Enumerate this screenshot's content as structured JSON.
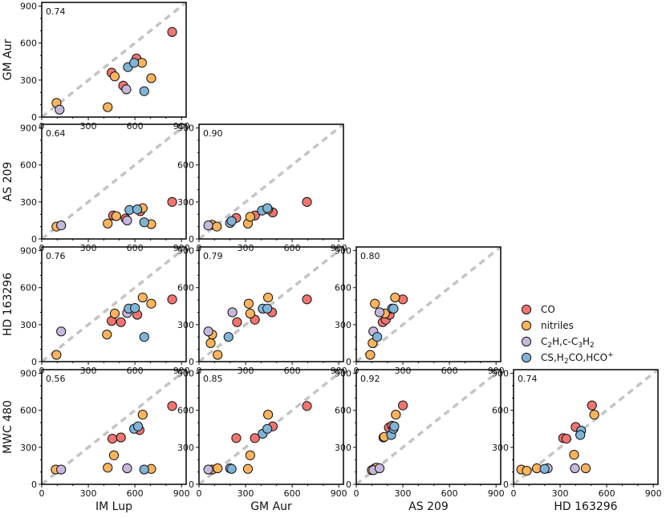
{
  "chart_data": {
    "type": "scatter",
    "layout": "corner",
    "title": "",
    "disks": [
      "IM Lup",
      "GM Aur",
      "AS 209",
      "HD 163296",
      "MWC 480"
    ],
    "x_axis_labels": [
      "IM Lup",
      "GM Aur",
      "AS 209",
      "HD 163296"
    ],
    "y_axis_labels": [
      "GM Aur",
      "AS 209",
      "HD 163296",
      "MWC 480"
    ],
    "xlim": [
      0,
      930
    ],
    "ylim": [
      0,
      930
    ],
    "ticks": [
      0,
      300,
      600,
      900
    ],
    "tick_labels": [
      "0",
      "300",
      "600",
      "900"
    ],
    "reference_line": "y = x",
    "grid": false,
    "legend_position": "right",
    "series": [
      {
        "name": "CO",
        "label_html": "CO",
        "color": "#f07470"
      },
      {
        "name": "nitriles",
        "label_html": "nitriles",
        "color": "#fbb45c"
      },
      {
        "name": "C2H,c-C3H2",
        "label_html": "C<tspan dy=\"3\" font-size=\"9\">2</tspan><tspan dy=\"-3\">H,c-C</tspan><tspan dy=\"3\" font-size=\"9\">3</tspan><tspan dy=\"-3\">H</tspan><tspan dy=\"3\" font-size=\"9\">2</tspan>",
        "color": "#c6b8dd"
      },
      {
        "name": "CS,H2CO,HCO+",
        "label_html": "CS,H<tspan dy=\"3\" font-size=\"9\">2</tspan><tspan dy=\"-3\">CO,HCO</tspan><tspan dy=\"-5\" font-size=\"9\">+</tspan>",
        "color": "#7fb4d8"
      }
    ],
    "panels": [
      {
        "id": "gmaur-vs-imlup",
        "row": 0,
        "col": 0,
        "x_disk": "IM Lup",
        "y_disk": "GM Aur",
        "corr": "0.74",
        "points": {
          "CO": [
            [
              450,
              360
            ],
            [
              525,
              255
            ],
            [
              610,
              475
            ],
            [
              840,
              690
            ]
          ],
          "nitriles": [
            [
              95,
              115
            ],
            [
              425,
              80
            ],
            [
              470,
              330
            ],
            [
              645,
              440
            ],
            [
              705,
              315
            ]
          ],
          "C2H,c-C3H2": [
            [
              115,
              60
            ],
            [
              545,
              225
            ]
          ],
          "CS,H2CO,HCO+": [
            [
              555,
              405
            ],
            [
              595,
              440
            ],
            [
              660,
              210
            ]
          ]
        }
      },
      {
        "id": "as209-vs-imlup",
        "row": 1,
        "col": 0,
        "x_disk": "IM Lup",
        "y_disk": "AS 209",
        "corr": "0.64",
        "points": {
          "CO": [
            [
              460,
              190
            ],
            [
              540,
              165
            ],
            [
              635,
              225
            ],
            [
              840,
              300
            ]
          ],
          "nitriles": [
            [
              95,
              100
            ],
            [
              425,
              125
            ],
            [
              480,
              185
            ],
            [
              650,
              250
            ],
            [
              705,
              120
            ]
          ],
          "C2H,c-C3H2": [
            [
              125,
              110
            ],
            [
              550,
              150
            ]
          ],
          "CS,H2CO,HCO+": [
            [
              565,
              235
            ],
            [
              615,
              240
            ],
            [
              660,
              135
            ]
          ]
        }
      },
      {
        "id": "as209-vs-gmaur",
        "row": 1,
        "col": 1,
        "x_disk": "GM Aur",
        "y_disk": "AS 209",
        "corr": "0.90",
        "points": {
          "CO": [
            [
              240,
              170
            ],
            [
              360,
              190
            ],
            [
              475,
              215
            ],
            [
              695,
              300
            ]
          ],
          "nitriles": [
            [
              85,
              115
            ],
            [
              115,
              100
            ],
            [
              315,
              125
            ],
            [
              330,
              180
            ],
            [
              445,
              240
            ]
          ],
          "C2H,c-C3H2": [
            [
              60,
              110
            ],
            [
              200,
              130
            ]
          ],
          "CS,H2CO,HCO+": [
            [
              405,
              230
            ],
            [
              440,
              250
            ],
            [
              210,
              145
            ]
          ]
        }
      },
      {
        "id": "hd163296-vs-imlup",
        "row": 2,
        "col": 0,
        "x_disk": "IM Lup",
        "y_disk": "HD 163296",
        "corr": "0.76",
        "points": {
          "CO": [
            [
              450,
              330
            ],
            [
              510,
              320
            ],
            [
              615,
              380
            ],
            [
              840,
              505
            ]
          ],
          "nitriles": [
            [
              95,
              55
            ],
            [
              420,
              220
            ],
            [
              470,
              390
            ],
            [
              650,
              520
            ],
            [
              705,
              470
            ]
          ],
          "C2H,c-C3H2": [
            [
              125,
              245
            ],
            [
              550,
              395
            ]
          ],
          "CS,H2CO,HCO+": [
            [
              560,
              430
            ],
            [
              600,
              435
            ],
            [
              660,
              200
            ]
          ]
        }
      },
      {
        "id": "hd163296-vs-gmaur",
        "row": 2,
        "col": 1,
        "x_disk": "GM Aur",
        "y_disk": "HD 163296",
        "corr": "0.79",
        "points": {
          "CO": [
            [
              245,
              320
            ],
            [
              360,
              340
            ],
            [
              470,
              400
            ],
            [
              695,
              505
            ]
          ],
          "nitriles": [
            [
              75,
              150
            ],
            [
              85,
              220
            ],
            [
              120,
              55
            ],
            [
              320,
              470
            ],
            [
              330,
              390
            ],
            [
              445,
              520
            ]
          ],
          "C2H,c-C3H2": [
            [
              60,
              245
            ],
            [
              215,
              400
            ]
          ],
          "CS,H2CO,HCO+": [
            [
              410,
              430
            ],
            [
              440,
              430
            ],
            [
              190,
              200
            ]
          ]
        }
      },
      {
        "id": "hd163296-vs-as209",
        "row": 2,
        "col": 2,
        "x_disk": "AS 209",
        "y_disk": "HD 163296",
        "corr": "0.80",
        "points": {
          "CO": [
            [
              170,
              320
            ],
            [
              190,
              340
            ],
            [
              215,
              380
            ],
            [
              300,
              505
            ]
          ],
          "nitriles": [
            [
              90,
              55
            ],
            [
              105,
              150
            ],
            [
              120,
              470
            ],
            [
              185,
              390
            ],
            [
              250,
              520
            ]
          ],
          "C2H,c-C3H2": [
            [
              110,
              245
            ],
            [
              150,
              400
            ]
          ],
          "CS,H2CO,HCO+": [
            [
              230,
              430
            ],
            [
              240,
              430
            ],
            [
              135,
              200
            ]
          ]
        }
      },
      {
        "id": "mwc480-vs-imlup",
        "row": 3,
        "col": 0,
        "x_disk": "IM Lup",
        "y_disk": "MWC 480",
        "corr": "0.56",
        "points": {
          "CO": [
            [
              455,
              370
            ],
            [
              510,
              380
            ],
            [
              630,
              440
            ],
            [
              840,
              635
            ]
          ],
          "nitriles": [
            [
              90,
              120
            ],
            [
              425,
              135
            ],
            [
              465,
              235
            ],
            [
              650,
              565
            ],
            [
              705,
              125
            ]
          ],
          "C2H,c-C3H2": [
            [
              125,
              120
            ],
            [
              550,
              130
            ]
          ],
          "CS,H2CO,HCO+": [
            [
              595,
              450
            ],
            [
              620,
              470
            ],
            [
              660,
              120
            ]
          ]
        }
      },
      {
        "id": "mwc480-vs-gmaur",
        "row": 3,
        "col": 1,
        "x_disk": "GM Aur",
        "y_disk": "MWC 480",
        "corr": "0.85",
        "points": {
          "CO": [
            [
              240,
              375
            ],
            [
              360,
              375
            ],
            [
              475,
              470
            ],
            [
              695,
              635
            ]
          ],
          "nitriles": [
            [
              85,
              120
            ],
            [
              120,
              130
            ],
            [
              315,
              125
            ],
            [
              330,
              235
            ],
            [
              445,
              565
            ]
          ],
          "C2H,c-C3H2": [
            [
              60,
              120
            ],
            [
              200,
              130
            ]
          ],
          "CS,H2CO,HCO+": [
            [
              410,
              410
            ],
            [
              440,
              450
            ],
            [
              210,
              125
            ]
          ]
        }
      },
      {
        "id": "mwc480-vs-as209",
        "row": 3,
        "col": 2,
        "x_disk": "AS 209",
        "y_disk": "MWC 480",
        "corr": "0.92",
        "points": {
          "CO": [
            [
              175,
              380
            ],
            [
              210,
              460
            ],
            [
              230,
              475
            ],
            [
              300,
              640
            ]
          ],
          "nitriles": [
            [
              100,
              115
            ],
            [
              120,
              130
            ],
            [
              130,
              135
            ],
            [
              180,
              385
            ],
            [
              255,
              565
            ]
          ],
          "C2H,c-C3H2": [
            [
              110,
              115
            ],
            [
              150,
              130
            ]
          ],
          "CS,H2CO,HCO+": [
            [
              225,
              400
            ],
            [
              240,
              450
            ],
            [
              245,
              470
            ]
          ]
        }
      },
      {
        "id": "mwc480-vs-hd163296",
        "row": 3,
        "col": 3,
        "x_disk": "HD 163296",
        "y_disk": "MWC 480",
        "corr": "0.74",
        "points": {
          "CO": [
            [
              320,
              375
            ],
            [
              340,
              370
            ],
            [
              400,
              465
            ],
            [
              505,
              640
            ]
          ],
          "nitriles": [
            [
              50,
              120
            ],
            [
              85,
              110
            ],
            [
              150,
              130
            ],
            [
              390,
              240
            ],
            [
              465,
              130
            ],
            [
              520,
              565
            ]
          ],
          "C2H,c-C3H2": [
            [
              220,
              130
            ],
            [
              395,
              130
            ]
          ],
          "CS,H2CO,HCO+": [
            [
              435,
              435
            ],
            [
              430,
              400
            ],
            [
              200,
              125
            ]
          ]
        }
      }
    ]
  }
}
